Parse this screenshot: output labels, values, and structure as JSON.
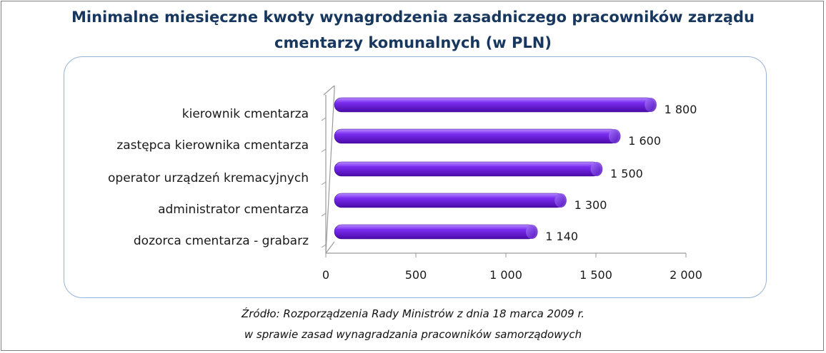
{
  "chart_data": {
    "type": "bar",
    "orientation": "horizontal",
    "title_line1": "Minimalne miesięczne kwoty wynagrodzenia zasadniczego pracowników zarządu",
    "title_line2": "cmentarzy komunalnych (w PLN)",
    "categories": [
      "kierownik cmentarza",
      "zastępca kierownika cmentarza",
      "operator urządzeń kremacyjnych",
      "administrator cmentarza",
      "dozorca cmentarza - grabarz"
    ],
    "values": [
      1800,
      1600,
      1500,
      1300,
      1140
    ],
    "value_labels": [
      "1 800",
      "1 600",
      "1 500",
      "1 300",
      "1 140"
    ],
    "xlim": [
      0,
      2000
    ],
    "x_ticks": [
      0,
      500,
      1000,
      1500,
      2000
    ],
    "x_tick_labels": [
      "0",
      "500",
      "1 000",
      "1 500",
      "2 000"
    ],
    "bar_color": "#6a1bd8",
    "grid": false,
    "legend": "none"
  },
  "source": {
    "line1": "Źródło: Rozporządzenia Rady Ministrów z dnia 18 marca 2009 r.",
    "line2": "w sprawie zasad wynagradzania pracowników samorządowych"
  }
}
